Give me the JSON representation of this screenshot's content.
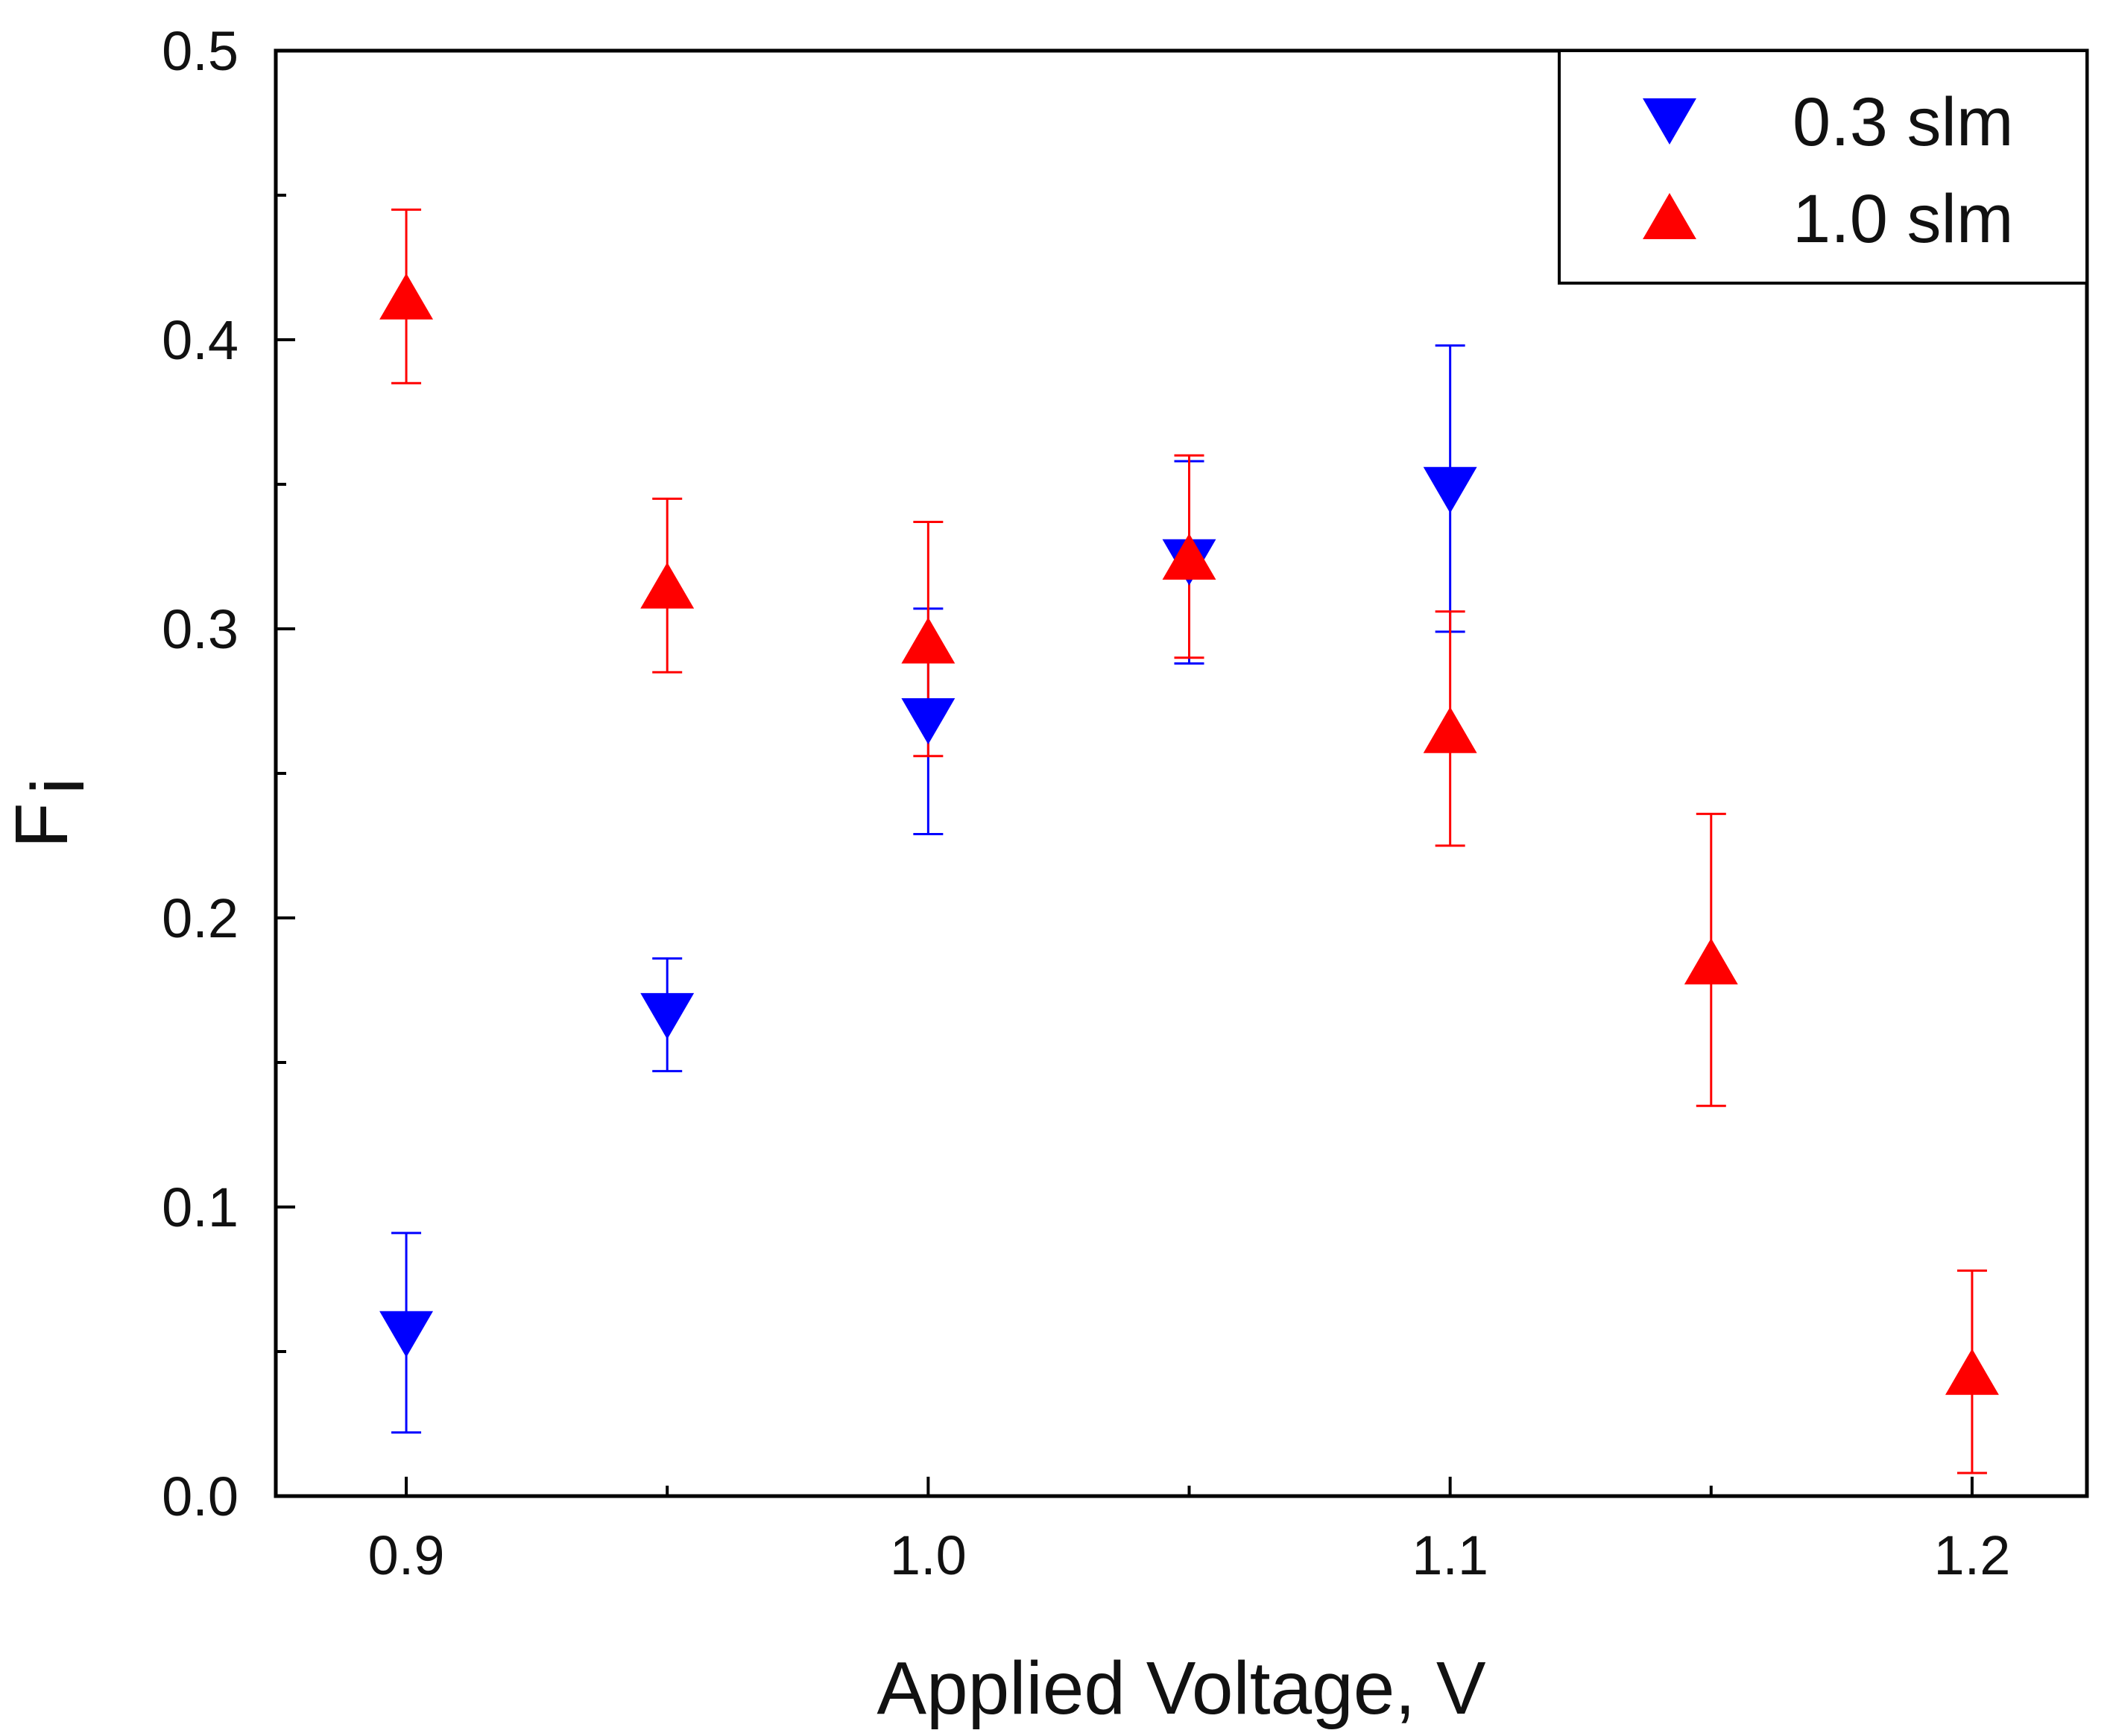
{
  "colors": {
    "series_0": "#0000ff",
    "series_1": "#ff0000",
    "axis": "#000000",
    "background": "#ffffff"
  },
  "chart_data": {
    "type": "scatter",
    "title": "",
    "xlabel": "Applied Voltage, V",
    "ylabel_main": "F",
    "ylabel_sub": "i",
    "xlim": [
      0.875,
      1.222
    ],
    "ylim": [
      0.0,
      0.5
    ],
    "x_ticks": [
      0.9,
      1.0,
      1.1,
      1.2
    ],
    "x_tick_labels": [
      "0.9",
      "1.0",
      "1.1",
      "1.2"
    ],
    "x_minor_ticks": [
      0.95,
      1.05,
      1.15
    ],
    "y_ticks": [
      0.0,
      0.1,
      0.2,
      0.3,
      0.4,
      0.5
    ],
    "y_tick_labels": [
      "0.0",
      "0.1",
      "0.2",
      "0.3",
      "0.4",
      "0.5"
    ],
    "y_minor_ticks": [
      0.05,
      0.15,
      0.25,
      0.35,
      0.45
    ],
    "grid": false,
    "legend_position": "top-right",
    "series": [
      {
        "name": "0.3 slm",
        "marker": "triangle-down",
        "color": "#0000ff",
        "x": [
          0.9,
          0.95,
          1.0,
          1.05,
          1.1
        ],
        "y": [
          0.056,
          0.166,
          0.268,
          0.323,
          0.348
        ],
        "err_low": [
          0.022,
          0.147,
          0.229,
          0.288,
          0.299
        ],
        "err_high": [
          0.091,
          0.186,
          0.307,
          0.358,
          0.398
        ]
      },
      {
        "name": "1.0 slm",
        "marker": "triangle-up",
        "color": "#ff0000",
        "x": [
          0.9,
          0.95,
          1.0,
          1.05,
          1.1,
          1.15,
          1.2
        ],
        "y": [
          0.415,
          0.315,
          0.296,
          0.325,
          0.265,
          0.185,
          0.043
        ],
        "err_low": [
          0.385,
          0.285,
          0.256,
          0.29,
          0.225,
          0.135,
          0.008
        ],
        "err_high": [
          0.445,
          0.345,
          0.337,
          0.36,
          0.306,
          0.236,
          0.078
        ]
      }
    ]
  }
}
